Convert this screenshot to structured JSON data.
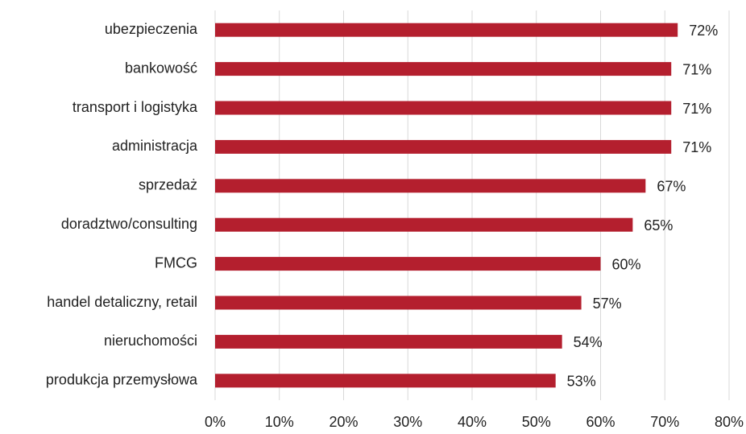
{
  "chart_data": {
    "type": "bar",
    "orientation": "horizontal",
    "categories": [
      "ubezpieczenia",
      "bankowość",
      "transport i logistyka",
      "administracja",
      "sprzedaż",
      "doradztwo/consulting",
      "FMCG",
      "handel detaliczny, retail",
      "nieruchomości",
      "produkcja przemysłowa"
    ],
    "values": [
      72,
      71,
      71,
      71,
      67,
      65,
      60,
      57,
      54,
      53
    ],
    "value_labels": [
      "72%",
      "71%",
      "71%",
      "71%",
      "67%",
      "65%",
      "60%",
      "57%",
      "54%",
      "53%"
    ],
    "color": "#b41f2e",
    "xlim": [
      0,
      80
    ],
    "xticks": [
      {
        "value": 0,
        "label": "0%"
      },
      {
        "value": 10,
        "label": "10%"
      },
      {
        "value": 20,
        "label": "20%"
      },
      {
        "value": 30,
        "label": "30%"
      },
      {
        "value": 40,
        "label": "40%"
      },
      {
        "value": 50,
        "label": "50%"
      },
      {
        "value": 60,
        "label": "60%"
      },
      {
        "value": 70,
        "label": "70%"
      },
      {
        "value": 80,
        "label": "80%"
      }
    ],
    "grid": true
  }
}
